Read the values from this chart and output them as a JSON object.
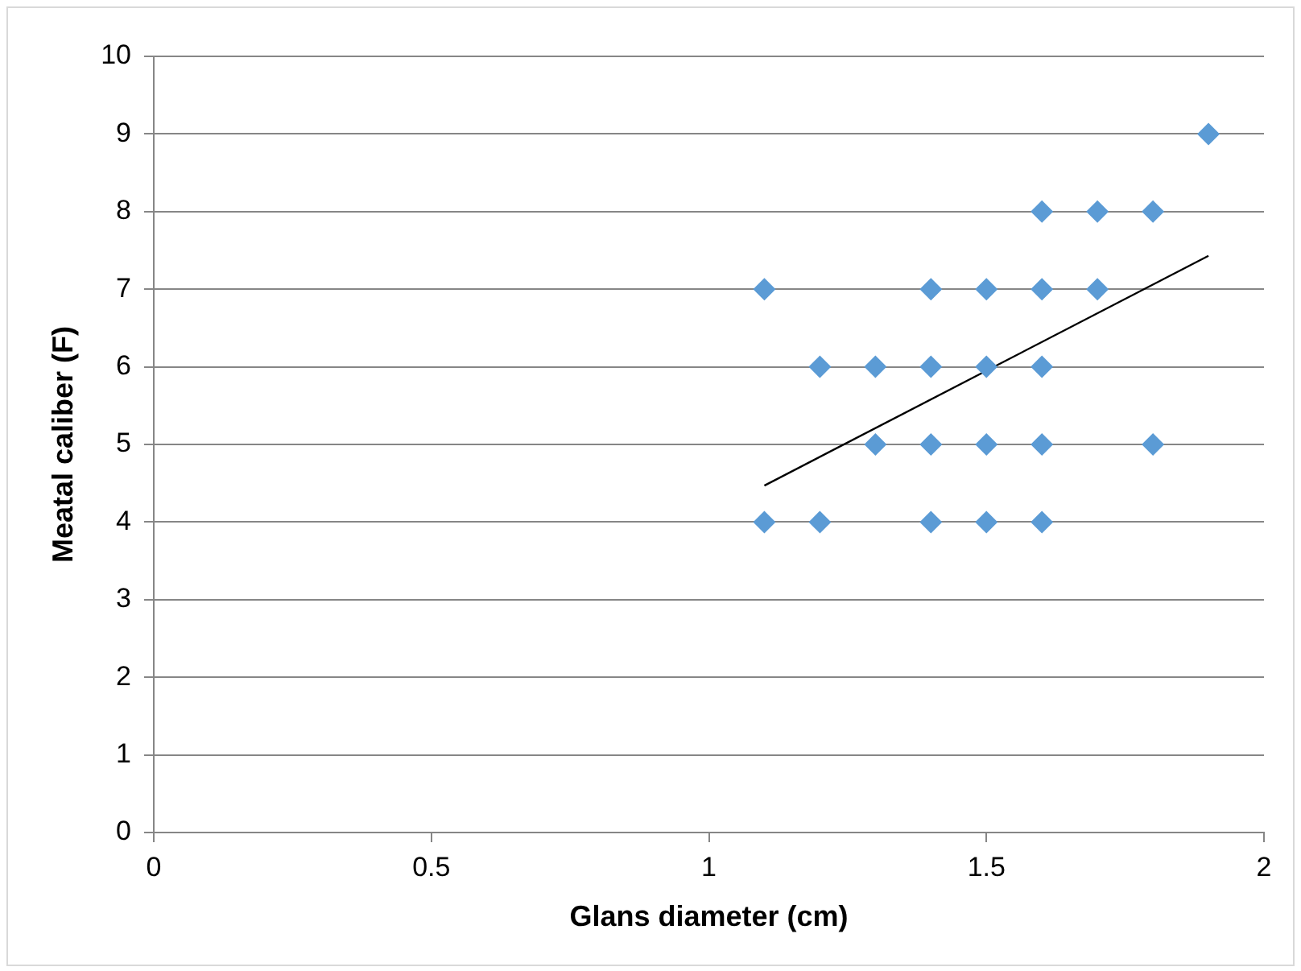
{
  "chart_data": {
    "type": "scatter",
    "xlabel": "Glans diameter (cm)",
    "ylabel": "Meatal caliber (F)",
    "xlim": [
      0,
      2
    ],
    "xticks": [
      0,
      0.5,
      1,
      1.5,
      2
    ],
    "ylim": [
      0,
      10
    ],
    "yticks": [
      0,
      1,
      2,
      3,
      4,
      5,
      6,
      7,
      8,
      9,
      10
    ],
    "grid": "y",
    "legend": false,
    "marker": "diamond",
    "series": [
      {
        "color": "#5b9bd5",
        "x": [
          1.1,
          1.1,
          1.2,
          1.2,
          1.3,
          1.3,
          1.4,
          1.4,
          1.4,
          1.4,
          1.5,
          1.5,
          1.5,
          1.5,
          1.6,
          1.6,
          1.6,
          1.6,
          1.6,
          1.7,
          1.7,
          1.8,
          1.8,
          1.9
        ],
        "values": [
          7,
          4,
          6,
          4,
          6,
          5,
          7,
          6,
          5,
          4,
          7,
          6,
          5,
          4,
          8,
          7,
          6,
          5,
          4,
          8,
          7,
          8,
          5,
          9
        ]
      },
      {
        "type": "line",
        "color": "#000000",
        "marker": "none",
        "x": [
          1.1,
          1.9
        ],
        "values": [
          4.47,
          7.43
        ]
      }
    ]
  }
}
